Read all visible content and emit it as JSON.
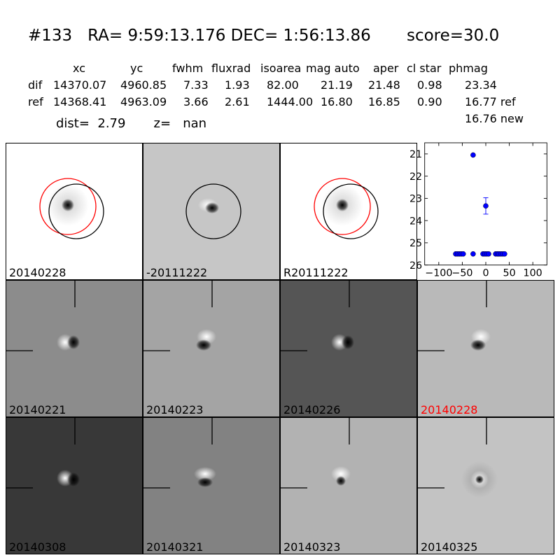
{
  "header": {
    "title": "#133   RA= 9:59:13.176 DEC= 1:56:13.86       score=30.0",
    "columns": [
      "xc",
      "yc",
      "fwhm",
      "fluxrad",
      "isoarea",
      "mag auto",
      "aper",
      "cl star",
      "phmag"
    ],
    "rows": [
      {
        "name": "dif",
        "values": [
          "14370.07",
          "4960.85",
          "7.33",
          "1.93",
          "82.00",
          "21.19",
          "21.48",
          "0.98",
          "23.34"
        ]
      },
      {
        "name": "ref",
        "values": [
          "14368.41",
          "4963.09",
          "3.66",
          "2.61",
          "1444.00",
          "16.80",
          "16.85",
          "0.90",
          "16.77 ref"
        ]
      }
    ],
    "extra_phmag": "16.76 new",
    "dist_line": "dist=  2.79       z=   nan"
  },
  "panels": [
    {
      "label": "20140228",
      "bg": "#ffffff",
      "dipole": "star",
      "red_circle": true,
      "black_circle": true,
      "red_label": false
    },
    {
      "label": "-20111222",
      "bg": "#c6c6c6",
      "dipole": "dipole1",
      "red_circle": false,
      "black_circle": true,
      "red_label": false
    },
    {
      "label": "R20111222",
      "bg": "#ffffff",
      "dipole": "star",
      "red_circle": true,
      "black_circle": true,
      "red_label": false
    },
    {
      "label": "20140221",
      "bg": "#8c8c8c",
      "dipole": "dipoleA",
      "red_label": false,
      "crosshair": true
    },
    {
      "label": "20140223",
      "bg": "#a4a4a4",
      "dipole": "dipoleB",
      "red_label": false,
      "crosshair": true
    },
    {
      "label": "20140226",
      "bg": "#555555",
      "dipole": "dipoleA",
      "red_label": false,
      "crosshair": true
    },
    {
      "label": "20140228",
      "bg": "#b9b9b9",
      "dipole": "dipoleB",
      "red_label": true,
      "crosshair": true
    },
    {
      "label": "20140308",
      "bg": "#383838",
      "dipole": "dipoleC",
      "red_label": false,
      "crosshair": true
    },
    {
      "label": "20140321",
      "bg": "#828282",
      "dipole": "dipoleD",
      "red_label": false,
      "crosshair": true
    },
    {
      "label": "20140323",
      "bg": "#b2b2b2",
      "dipole": "dipoleE",
      "red_label": false,
      "crosshair": true
    },
    {
      "label": "20140325",
      "bg": "#c3c3c3",
      "dipole": "ring",
      "red_label": false,
      "crosshair": true
    }
  ],
  "chart_data": {
    "type": "scatter",
    "xlim": [
      -130,
      130
    ],
    "ylim": [
      26,
      20.5
    ],
    "xticks": [
      "−100",
      "−50",
      "0",
      "50",
      "100"
    ],
    "xtick_values": [
      -100,
      -50,
      0,
      50,
      100
    ],
    "yticks": [
      "21",
      "22",
      "23",
      "24",
      "25",
      "26"
    ],
    "ytick_values": [
      21,
      22,
      23,
      24,
      25,
      26
    ],
    "color": "#0000ff",
    "points": [
      {
        "x": -27,
        "y": 21.05
      },
      {
        "x": 0,
        "y": 23.34,
        "err": 0.37
      },
      {
        "x": -64,
        "y": 25.5
      },
      {
        "x": -60,
        "y": 25.5
      },
      {
        "x": -56,
        "y": 25.5
      },
      {
        "x": -52,
        "y": 25.5
      },
      {
        "x": -48,
        "y": 25.5
      },
      {
        "x": -27,
        "y": 25.5
      },
      {
        "x": -6,
        "y": 25.5
      },
      {
        "x": -2,
        "y": 25.5
      },
      {
        "x": 2,
        "y": 25.5
      },
      {
        "x": 6,
        "y": 25.5
      },
      {
        "x": 21,
        "y": 25.5
      },
      {
        "x": 25,
        "y": 25.5
      },
      {
        "x": 28,
        "y": 25.5
      },
      {
        "x": 32,
        "y": 25.5
      },
      {
        "x": 36,
        "y": 25.5
      },
      {
        "x": 40,
        "y": 25.5
      }
    ]
  }
}
